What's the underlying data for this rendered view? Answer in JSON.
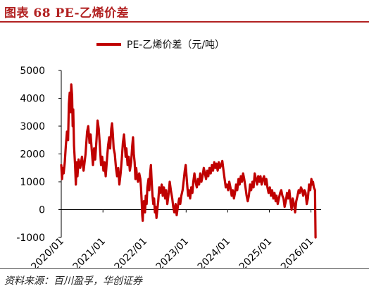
{
  "header": {
    "title": "图表  68 PE-乙烯价差"
  },
  "footer": {
    "source": "资料来源：百川盈孚，华创证券"
  },
  "chart_data": {
    "type": "line",
    "title": "",
    "xlabel": "",
    "ylabel": "",
    "legend": {
      "position": "top-center"
    },
    "grid": false,
    "ylim": [
      -1000,
      5000
    ],
    "yticks": [
      "5000",
      "4000",
      "3000",
      "2000",
      "1000",
      "0",
      "-1000"
    ],
    "xlim": [
      "2020/01/01",
      "2026/03/31"
    ],
    "xticks": [
      "2020/01",
      "2021/01",
      "2022/01",
      "2023/01",
      "2024/01",
      "2025/01",
      "2026/01"
    ],
    "series": [
      {
        "name": "PE-乙烯价差（元/吨）",
        "color": "#c00000",
        "points": [
          [
            "2020/01/01",
            1600
          ],
          [
            "2020/01/08",
            1100
          ],
          [
            "2020/01/15",
            1500
          ],
          [
            "2020/01/22",
            1300
          ],
          [
            "2020/02/01",
            1700
          ],
          [
            "2020/02/10",
            2300
          ],
          [
            "2020/02/20",
            2800
          ],
          [
            "2020/03/01",
            2500
          ],
          [
            "2020/03/08",
            3800
          ],
          [
            "2020/03/15",
            4200
          ],
          [
            "2020/03/22",
            3500
          ],
          [
            "2020/03/29",
            4500
          ],
          [
            "2020/04/05",
            4100
          ],
          [
            "2020/04/10",
            3000
          ],
          [
            "2020/04/15",
            3600
          ],
          [
            "2020/04/22",
            2300
          ],
          [
            "2020/05/01",
            1600
          ],
          [
            "2020/05/08",
            900
          ],
          [
            "2020/05/15",
            1700
          ],
          [
            "2020/05/22",
            1200
          ],
          [
            "2020/06/01",
            1800
          ],
          [
            "2020/06/15",
            1500
          ],
          [
            "2020/07/01",
            1900
          ],
          [
            "2020/07/15",
            1400
          ],
          [
            "2020/08/01",
            2000
          ],
          [
            "2020/08/15",
            2800
          ],
          [
            "2020/08/25",
            3000
          ],
          [
            "2020/09/05",
            2400
          ],
          [
            "2020/09/15",
            2700
          ],
          [
            "2020/09/25",
            2100
          ],
          [
            "2020/10/05",
            1600
          ],
          [
            "2020/10/15",
            2200
          ],
          [
            "2020/10/25",
            1800
          ],
          [
            "2020/11/05",
            2500
          ],
          [
            "2020/11/15",
            3200
          ],
          [
            "2020/11/25",
            2900
          ],
          [
            "2020/12/05",
            2300
          ],
          [
            "2020/12/15",
            1600
          ],
          [
            "2020/12/25",
            1900
          ],
          [
            "2021/01/05",
            1400
          ],
          [
            "2021/01/15",
            1700
          ],
          [
            "2021/01/25",
            1200
          ],
          [
            "2021/02/05",
            1800
          ],
          [
            "2021/02/15",
            2300
          ],
          [
            "2021/02/25",
            2600
          ],
          [
            "2021/03/05",
            2200
          ],
          [
            "2021/03/15",
            2900
          ],
          [
            "2021/03/22",
            3100
          ],
          [
            "2021/03/29",
            2700
          ],
          [
            "2021/04/05",
            2200
          ],
          [
            "2021/04/15",
            2000
          ],
          [
            "2021/04/25",
            1500
          ],
          [
            "2021/05/05",
            1200
          ],
          [
            "2021/05/15",
            1500
          ],
          [
            "2021/05/25",
            900
          ],
          [
            "2021/06/05",
            1300
          ],
          [
            "2021/06/15",
            1800
          ],
          [
            "2021/06/25",
            2400
          ],
          [
            "2021/07/05",
            2700
          ],
          [
            "2021/07/12",
            2300
          ],
          [
            "2021/07/19",
            1900
          ],
          [
            "2021/07/26",
            2200
          ],
          [
            "2021/08/05",
            1600
          ],
          [
            "2021/08/15",
            1900
          ],
          [
            "2021/08/25",
            1400
          ],
          [
            "2021/09/05",
            1700
          ],
          [
            "2021/09/15",
            2300
          ],
          [
            "2021/09/22",
            2600
          ],
          [
            "2021/09/29",
            2000
          ],
          [
            "2021/10/06",
            1700
          ],
          [
            "2021/10/13",
            1100
          ],
          [
            "2021/10/20",
            1500
          ],
          [
            "2021/10/27",
            1200
          ],
          [
            "2021/11/05",
            1000
          ],
          [
            "2021/11/15",
            1300
          ],
          [
            "2021/11/25",
            1100
          ],
          [
            "2021/12/01",
            800
          ],
          [
            "2021/12/08",
            200
          ],
          [
            "2021/12/12",
            -200
          ],
          [
            "2021/12/16",
            -400
          ],
          [
            "2021/12/20",
            0
          ],
          [
            "2021/12/26",
            300
          ],
          [
            "2022/01/05",
            -100
          ],
          [
            "2022/01/12",
            500
          ],
          [
            "2022/01/19",
            200
          ],
          [
            "2022/01/26",
            800
          ],
          [
            "2022/02/05",
            1100
          ],
          [
            "2022/02/12",
            700
          ],
          [
            "2022/02/19",
            1300
          ],
          [
            "2022/02/26",
            1600
          ],
          [
            "2022/03/05",
            1000
          ],
          [
            "2022/03/12",
            500
          ],
          [
            "2022/03/19",
            200
          ],
          [
            "2022/03/26",
            400
          ],
          [
            "2022/04/02",
            -100
          ],
          [
            "2022/04/09",
            100
          ],
          [
            "2022/04/16",
            -300
          ],
          [
            "2022/04/23",
            0
          ],
          [
            "2022/05/01",
            300
          ],
          [
            "2022/05/10",
            800
          ],
          [
            "2022/05/20",
            600
          ],
          [
            "2022/06/01",
            900
          ],
          [
            "2022/06/10",
            500
          ],
          [
            "2022/06/20",
            800
          ],
          [
            "2022/07/01",
            400
          ],
          [
            "2022/07/10",
            700
          ],
          [
            "2022/07/20",
            200
          ],
          [
            "2022/08/01",
            600
          ],
          [
            "2022/08/10",
            1000
          ],
          [
            "2022/08/20",
            700
          ],
          [
            "2022/09/01",
            400
          ],
          [
            "2022/09/10",
            100
          ],
          [
            "2022/09/20",
            -100
          ],
          [
            "2022/10/01",
            200
          ],
          [
            "2022/10/10",
            -200
          ],
          [
            "2022/10/20",
            100
          ],
          [
            "2022/11/01",
            400
          ],
          [
            "2022/11/10",
            200
          ],
          [
            "2022/11/20",
            500
          ],
          [
            "2022/12/01",
            700
          ],
          [
            "2022/12/10",
            1000
          ],
          [
            "2022/12/20",
            1400
          ],
          [
            "2022/12/28",
            1600
          ],
          [
            "2023/01/05",
            1200
          ],
          [
            "2023/01/12",
            800
          ],
          [
            "2023/01/19",
            500
          ],
          [
            "2023/01/26",
            700
          ],
          [
            "2023/02/05",
            400
          ],
          [
            "2023/02/15",
            800
          ],
          [
            "2023/02/25",
            600
          ],
          [
            "2023/03/05",
            1000
          ],
          [
            "2023/03/15",
            1300
          ],
          [
            "2023/03/25",
            1000
          ],
          [
            "2023/04/05",
            800
          ],
          [
            "2023/04/15",
            1100
          ],
          [
            "2023/04/25",
            900
          ],
          [
            "2023/05/05",
            1300
          ],
          [
            "2023/05/15",
            1000
          ],
          [
            "2023/05/25",
            1200
          ],
          [
            "2023/06/05",
            1500
          ],
          [
            "2023/06/15",
            1300
          ],
          [
            "2023/06/25",
            1100
          ],
          [
            "2023/07/05",
            1400
          ],
          [
            "2023/07/15",
            1200
          ],
          [
            "2023/07/25",
            1500
          ],
          [
            "2023/08/05",
            1300
          ],
          [
            "2023/08/15",
            1600
          ],
          [
            "2023/08/25",
            1400
          ],
          [
            "2023/09/05",
            1700
          ],
          [
            "2023/09/15",
            1500
          ],
          [
            "2023/09/25",
            1650
          ],
          [
            "2023/10/05",
            1400
          ],
          [
            "2023/10/15",
            1700
          ],
          [
            "2023/10/25",
            1500
          ],
          [
            "2023/11/05",
            1600
          ],
          [
            "2023/11/15",
            1750
          ],
          [
            "2023/11/25",
            1400
          ],
          [
            "2023/12/05",
            1100
          ],
          [
            "2023/12/15",
            800
          ],
          [
            "2023/12/25",
            900
          ],
          [
            "2024/01/05",
            700
          ],
          [
            "2024/01/15",
            1000
          ],
          [
            "2024/01/25",
            800
          ],
          [
            "2024/02/05",
            500
          ],
          [
            "2024/02/15",
            700
          ],
          [
            "2024/02/25",
            400
          ],
          [
            "2024/03/05",
            600
          ],
          [
            "2024/03/15",
            900
          ],
          [
            "2024/03/25",
            700
          ],
          [
            "2024/04/05",
            1100
          ],
          [
            "2024/04/15",
            900
          ],
          [
            "2024/04/25",
            1200
          ],
          [
            "2024/05/05",
            1000
          ],
          [
            "2024/05/15",
            1300
          ],
          [
            "2024/05/25",
            1100
          ],
          [
            "2024/06/05",
            800
          ],
          [
            "2024/06/15",
            500
          ],
          [
            "2024/06/25",
            300
          ],
          [
            "2024/07/05",
            500
          ],
          [
            "2024/07/15",
            900
          ],
          [
            "2024/07/25",
            700
          ],
          [
            "2024/08/05",
            1000
          ],
          [
            "2024/08/15",
            800
          ],
          [
            "2024/08/25",
            1300
          ],
          [
            "2024/09/05",
            1100
          ],
          [
            "2024/09/15",
            900
          ],
          [
            "2024/09/25",
            1200
          ],
          [
            "2024/10/05",
            1000
          ],
          [
            "2024/10/15",
            1200
          ],
          [
            "2024/10/25",
            900
          ],
          [
            "2024/11/05",
            1100
          ],
          [
            "2024/11/15",
            1200
          ],
          [
            "2024/11/25",
            900
          ],
          [
            "2024/12/05",
            1100
          ],
          [
            "2024/12/15",
            800
          ],
          [
            "2024/12/25",
            600
          ],
          [
            "2025/01/05",
            800
          ],
          [
            "2025/01/15",
            500
          ],
          [
            "2025/01/25",
            700
          ],
          [
            "2025/02/05",
            400
          ],
          [
            "2025/02/15",
            600
          ],
          [
            "2025/02/25",
            300
          ],
          [
            "2025/03/05",
            500
          ],
          [
            "2025/03/15",
            200
          ],
          [
            "2025/03/25",
            400
          ],
          [
            "2025/04/05",
            600
          ],
          [
            "2025/04/15",
            700
          ],
          [
            "2025/04/25",
            500
          ],
          [
            "2025/05/05",
            400
          ],
          [
            "2025/05/15",
            100
          ],
          [
            "2025/05/25",
            300
          ],
          [
            "2025/06/05",
            600
          ],
          [
            "2025/06/15",
            400
          ],
          [
            "2025/06/25",
            700
          ],
          [
            "2025/07/05",
            300
          ],
          [
            "2025/07/15",
            0
          ],
          [
            "2025/07/25",
            400
          ],
          [
            "2025/08/05",
            200
          ],
          [
            "2025/08/15",
            -100
          ],
          [
            "2025/08/25",
            300
          ],
          [
            "2025/09/05",
            500
          ],
          [
            "2025/09/15",
            700
          ],
          [
            "2025/09/25",
            600
          ],
          [
            "2025/10/05",
            800
          ],
          [
            "2025/10/15",
            700
          ],
          [
            "2025/10/25",
            500
          ],
          [
            "2025/11/05",
            700
          ],
          [
            "2025/11/15",
            600
          ],
          [
            "2025/11/25",
            200
          ],
          [
            "2025/12/05",
            400
          ],
          [
            "2025/12/15",
            900
          ],
          [
            "2025/12/25",
            700
          ],
          [
            "2026/01/05",
            1100
          ],
          [
            "2026/01/12",
            900
          ],
          [
            "2026/01/19",
            1000
          ],
          [
            "2026/01/26",
            800
          ],
          [
            "2026/02/05",
            700
          ],
          [
            "2026/02/10",
            -1000
          ]
        ]
      }
    ]
  }
}
